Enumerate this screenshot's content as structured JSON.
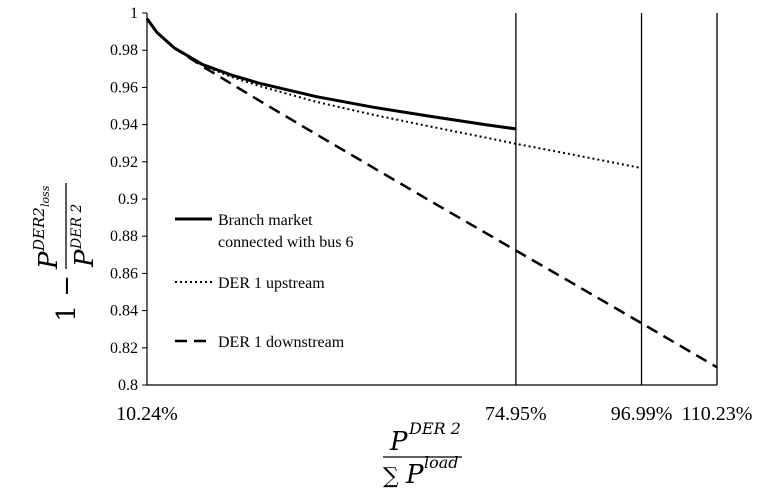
{
  "chart_data": {
    "type": "line",
    "ylim": [
      0.8,
      1.0
    ],
    "y_ticks": [
      "1",
      "0.98",
      "0.96",
      "0.94",
      "0.92",
      "0.9",
      "0.88",
      "0.86",
      "0.84",
      "0.82",
      "0.8"
    ],
    "x_tick_labels": [
      "10.24%",
      "74.95%",
      "96.99%",
      "110.23%"
    ],
    "x_tick_values": [
      10.24,
      74.95,
      96.99,
      110.23
    ],
    "xlim": [
      10.24,
      110.23
    ],
    "vertical_lines_at": [
      74.95,
      96.99,
      110.23
    ],
    "grid": false,
    "legend_position": "center-left",
    "ylabel": {
      "prefix": "1 −",
      "numerator_base": "P",
      "numerator_sup": "DER2",
      "numerator_sub": "loss",
      "denominator_base": "P",
      "denominator_sup": "DER 2"
    },
    "xlabel": {
      "numerator_base": "P",
      "numerator_sup": "DER 2",
      "denominator_prefix": "∑",
      "denominator_base": "P",
      "denominator_sup": "load"
    },
    "series": [
      {
        "name_lines": [
          "Branch market",
          "connected with bus 6"
        ],
        "style": "solid",
        "x": [
          10.24,
          12,
          15,
          20,
          25,
          30,
          40,
          50,
          60,
          70,
          74.95
        ],
        "y": [
          0.997,
          0.9895,
          0.9813,
          0.9723,
          0.9667,
          0.9622,
          0.955,
          0.9493,
          0.9444,
          0.9398,
          0.9377
        ]
      },
      {
        "name_lines": [
          "DER 1 upstream"
        ],
        "style": "dotted",
        "x": [
          10.24,
          12,
          15,
          20,
          25,
          30,
          40,
          50,
          60,
          70,
          74.95,
          85,
          96.99
        ],
        "y": [
          0.997,
          0.9895,
          0.9813,
          0.9718,
          0.9657,
          0.9607,
          0.9522,
          0.9452,
          0.9389,
          0.9328,
          0.9297,
          0.9238,
          0.9166
        ]
      },
      {
        "name_lines": [
          "DER 1 downstream"
        ],
        "style": "dashed",
        "x": [
          10.24,
          12,
          15,
          20,
          30,
          40,
          50,
          60,
          74.95,
          85,
          96.99,
          110.23
        ],
        "y": [
          0.997,
          0.9895,
          0.9813,
          0.9713,
          0.9528,
          0.9347,
          0.9167,
          0.8988,
          0.8723,
          0.8545,
          0.8332,
          0.8095
        ]
      }
    ]
  }
}
